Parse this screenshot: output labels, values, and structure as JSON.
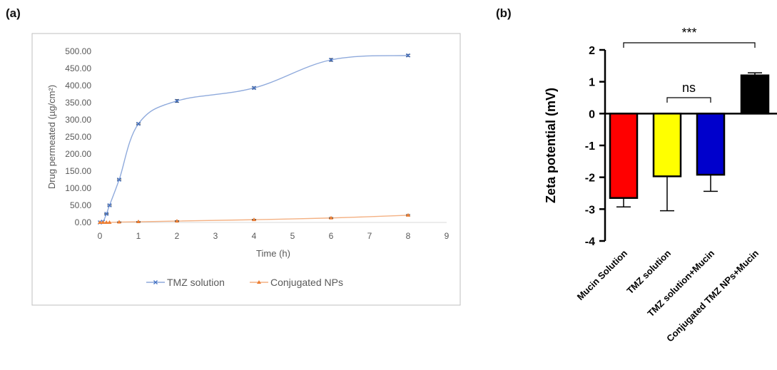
{
  "panels": {
    "a_label": "(a)",
    "b_label": "(b)"
  },
  "chart_data": [
    {
      "type": "line",
      "panel": "(a)",
      "xlabel": "Time (h)",
      "ylabel": "Drug permeated (µg/cm²)",
      "xlim": [
        0,
        9
      ],
      "ylim": [
        0,
        500
      ],
      "xticks": [
        "0",
        "1",
        "2",
        "3",
        "4",
        "5",
        "6",
        "7",
        "8",
        "9"
      ],
      "yticks": [
        "0.00",
        "50.00",
        "100.00",
        "150.00",
        "200.00",
        "250.00",
        "300.00",
        "350.00",
        "400.00",
        "450.00",
        "500.00"
      ],
      "legend_position": "bottom",
      "series": [
        {
          "name": "TMZ solution",
          "color": "#8faadc",
          "marker": "x",
          "x": [
            0,
            0.08,
            0.17,
            0.25,
            0.5,
            1,
            2,
            4,
            6,
            8
          ],
          "y": [
            0,
            2,
            25,
            50,
            125,
            288,
            355,
            393,
            475,
            488
          ],
          "err": [
            0,
            0,
            1.5,
            2,
            2,
            2,
            4,
            3,
            4,
            3
          ]
        },
        {
          "name": "Conjugated NPs",
          "color": "#f4b183",
          "marker": "triangle",
          "x": [
            0,
            0.08,
            0.17,
            0.25,
            0.5,
            1,
            2,
            4,
            6,
            8
          ],
          "y": [
            0,
            0,
            0,
            0,
            1,
            2,
            4,
            8,
            13,
            21
          ],
          "err": [
            0,
            0,
            0,
            0,
            0.5,
            0.5,
            1,
            1,
            1.5,
            2
          ]
        }
      ]
    },
    {
      "type": "bar",
      "panel": "(b)",
      "ylabel": "Zeta potential (mV)",
      "ylim": [
        -4,
        2
      ],
      "yticks": [
        "-4",
        "-3",
        "-2",
        "-1",
        "0",
        "1",
        "2"
      ],
      "categories": [
        "Mucin Solution",
        "TMZ solution",
        "TMZ solution+Mucin",
        "Conjugated TMZ NPs+Mucin"
      ],
      "values": [
        -2.65,
        -1.97,
        -1.92,
        1.2
      ],
      "errors": [
        0.28,
        1.08,
        0.52,
        0.08
      ],
      "colors": [
        "#ff0000",
        "#ffff00",
        "#0000cc",
        "#000000"
      ],
      "significance": [
        {
          "from": 0,
          "to": 3,
          "label": "***"
        },
        {
          "from": 1,
          "to": 2,
          "label": "ns"
        }
      ]
    }
  ]
}
